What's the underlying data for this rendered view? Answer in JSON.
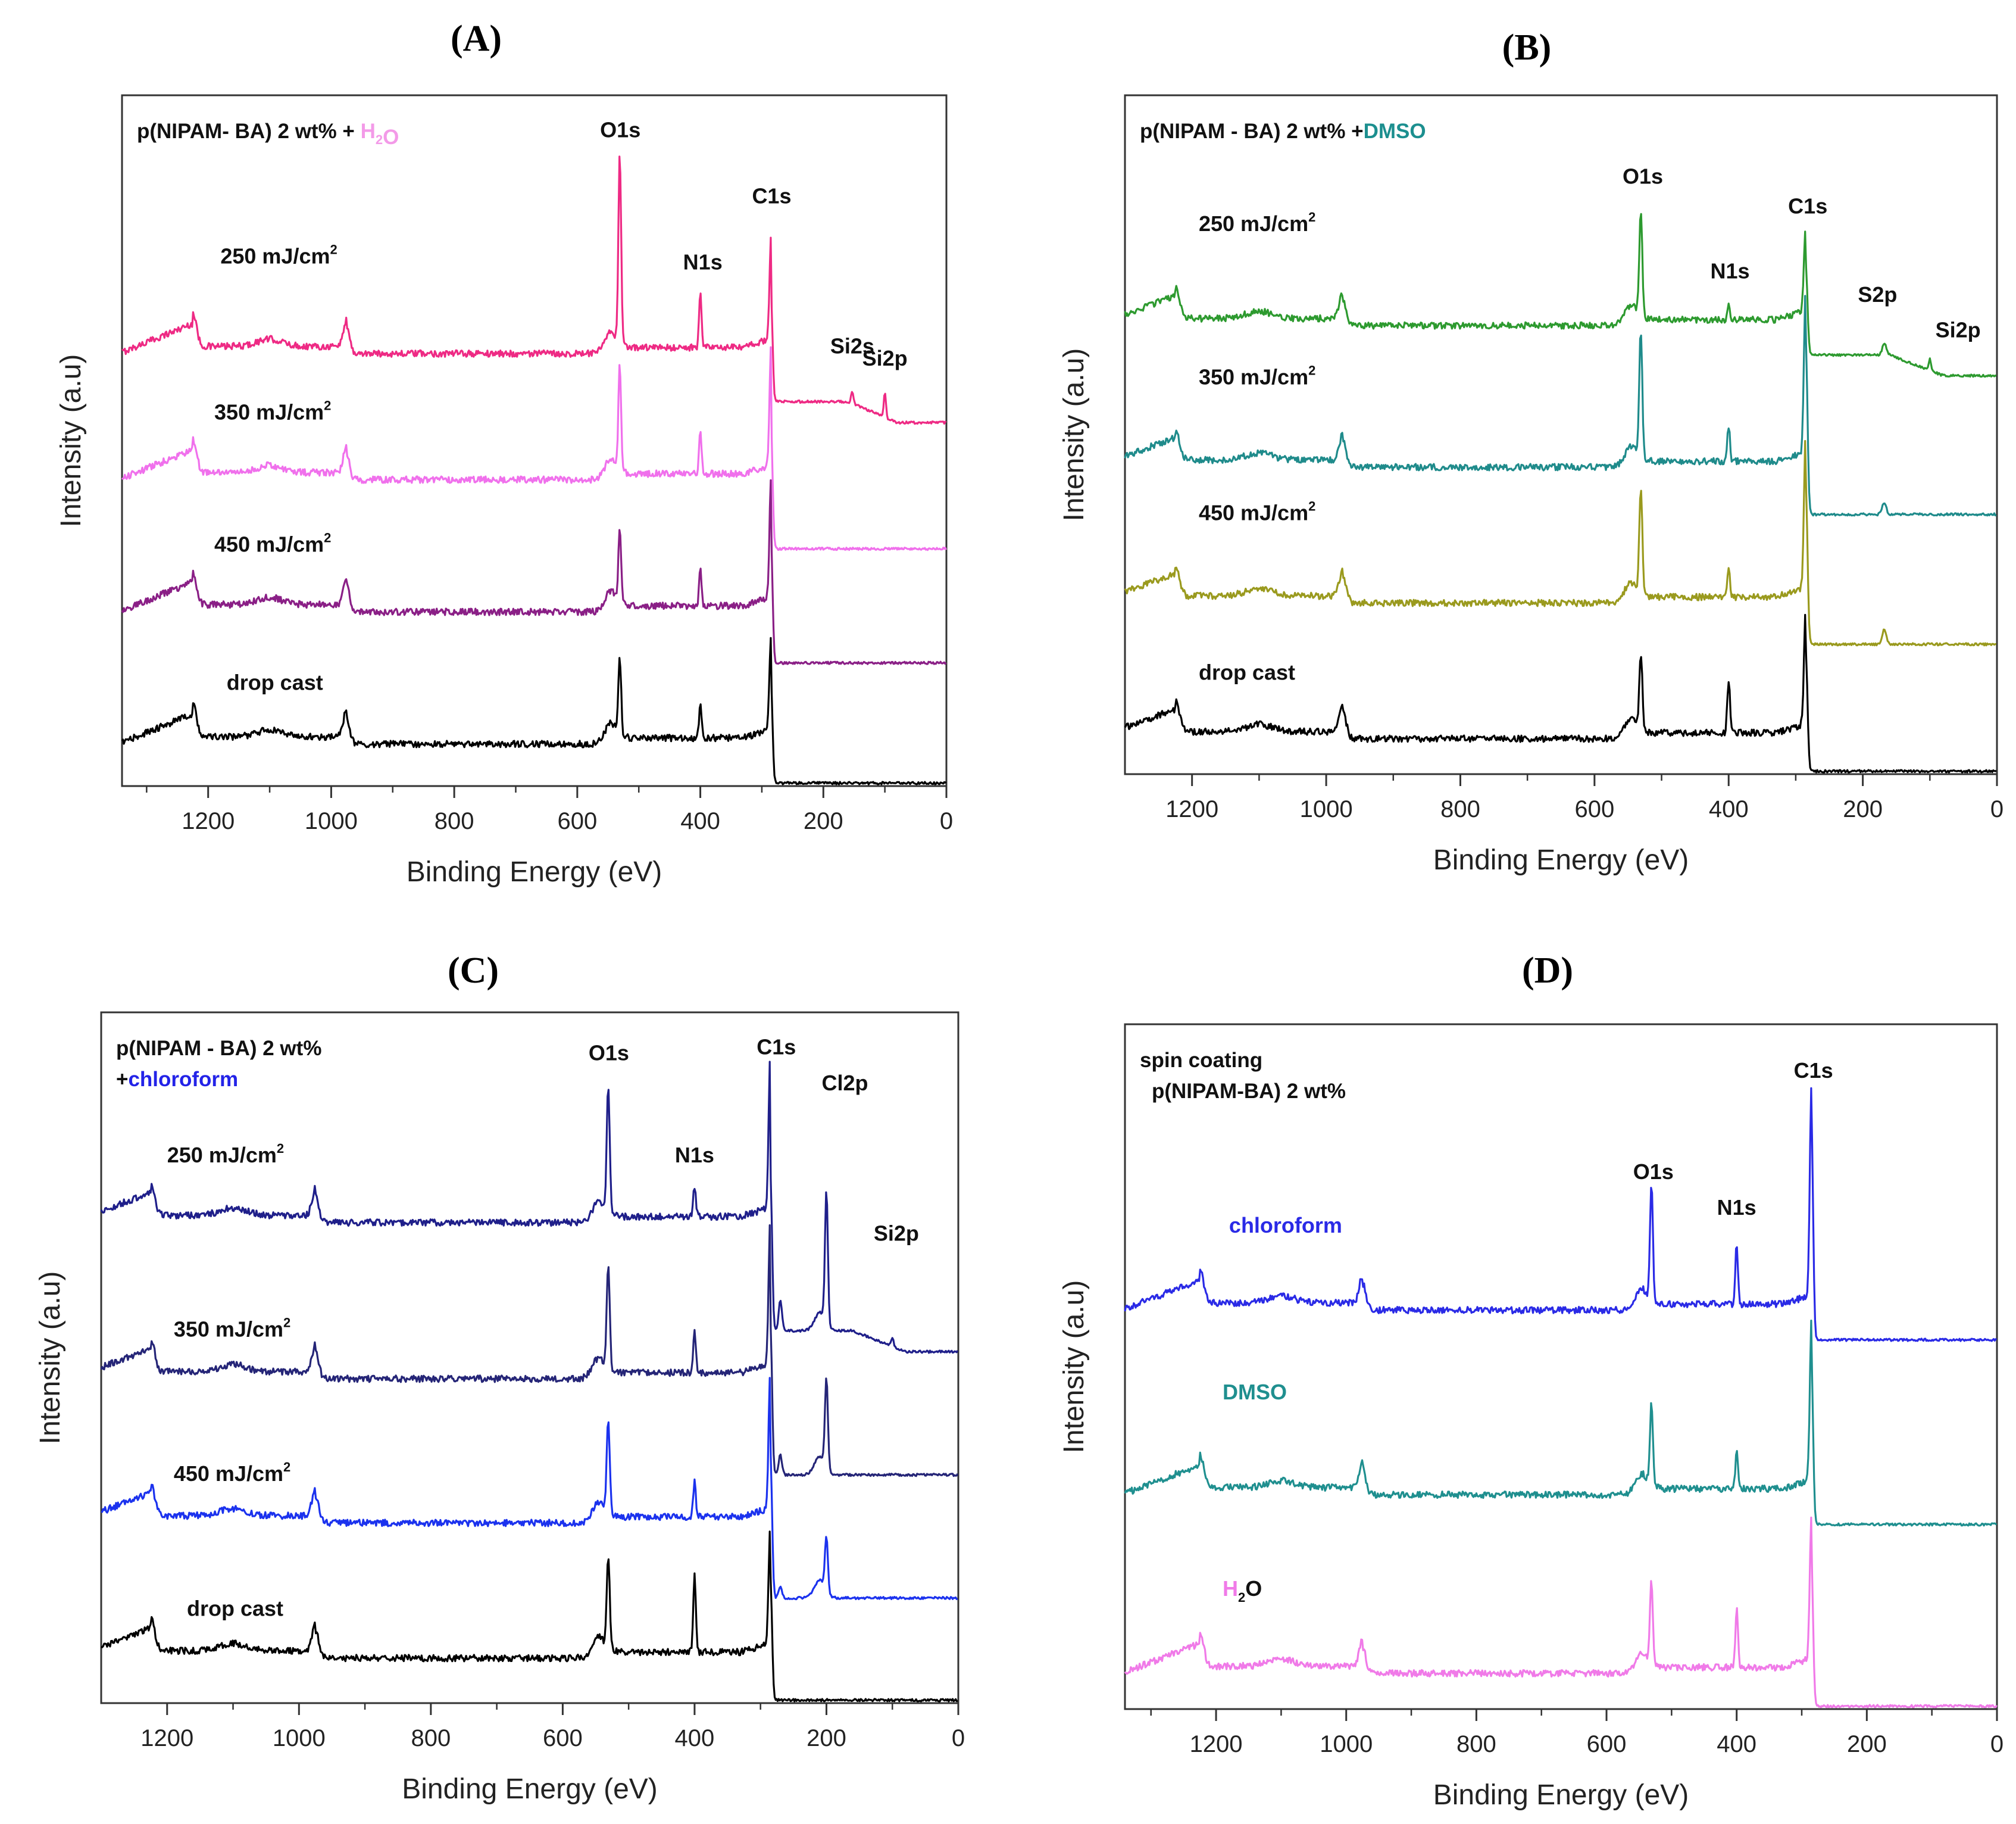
{
  "figure": {
    "panel_letters": [
      "(A)",
      "(B)",
      "(C)",
      "(D)"
    ],
    "common_xlabel": "Binding Energy (eV)",
    "common_ylabel": "Intensity (a.u)"
  },
  "chart_data": [
    {
      "id": "A",
      "type": "line",
      "panel_label": "(A)",
      "title_parts": [
        {
          "text": "p(NIPAM- BA) 2 wt% + ",
          "color": "#111111"
        },
        {
          "text": "H",
          "color": "#f39ae8"
        },
        {
          "text": "2",
          "color": "#f39ae8",
          "sub": true
        },
        {
          "text": "O",
          "color": "#f39ae8"
        }
      ],
      "xlabel": "Binding Energy (eV)",
      "ylabel": "Intensity (a.u)",
      "xlim": [
        1340,
        0
      ],
      "x_ticks": [
        1200,
        1000,
        800,
        600,
        400,
        200,
        0
      ],
      "x_tick_labels": [
        "1200",
        "1000",
        "800",
        "600",
        "400",
        "200",
        "0"
      ],
      "series": [
        {
          "name": "250 mJ/cm2",
          "label": "250 mJ/cm",
          "sup": "2",
          "color": "#ee2a84",
          "label_x": 1180,
          "label_depth": 1.5,
          "baseline": 7.2,
          "tail": 6.4,
          "o1s": 3.2,
          "n1s": 0.9,
          "c1s": 1.7,
          "si2p": 0.4,
          "si2s": 0.2
        },
        {
          "name": "350 mJ/cm2",
          "label": "350 mJ/cm",
          "sup": "2",
          "color": "#f070ec",
          "label_x": 1190,
          "label_depth": 1.0,
          "baseline": 5.1,
          "tail": 3.95,
          "o1s": 1.8,
          "n1s": 0.7,
          "c1s": 2.0
        },
        {
          "name": "450 mJ/cm2",
          "label": "450 mJ/cm",
          "sup": "2",
          "color": "#8a1f86",
          "label_x": 1190,
          "label_depth": 1.0,
          "baseline": 2.9,
          "tail": 2.05,
          "o1s": 1.3,
          "n1s": 0.6,
          "c1s": 2.0
        },
        {
          "name": "drop cast",
          "label": "drop cast",
          "sup": "",
          "color": "#000000",
          "label_x": 1170,
          "label_depth": 0.9,
          "baseline": 0.7,
          "tail": 0.05,
          "o1s": 1.3,
          "n1s": 0.6,
          "c1s": 1.6
        }
      ],
      "peak_annotations": [
        {
          "text": "O1s",
          "x": 530,
          "level": 10.8
        },
        {
          "text": "N1s",
          "x": 396,
          "level": 8.6
        },
        {
          "text": "C1s",
          "x": 284,
          "level": 9.7
        },
        {
          "text": "Si2s",
          "x": 153,
          "level": 7.2
        },
        {
          "text": "Si2p",
          "x": 100,
          "level": 7.0
        }
      ]
    },
    {
      "id": "B",
      "type": "line",
      "panel_label": "(B)",
      "title_parts": [
        {
          "text": "p(NIPAM - BA) 2 wt% +",
          "color": "#111111"
        },
        {
          "text": "DMSO",
          "color": "#1c8f8f"
        }
      ],
      "xlabel": "Binding Energy (eV)",
      "ylabel": "Intensity (a.u)",
      "xlim": [
        1300,
        0
      ],
      "x_ticks": [
        1200,
        1000,
        800,
        600,
        400,
        200,
        0
      ],
      "x_tick_labels": [
        "1200",
        "1000",
        "800",
        "600",
        "400",
        "200",
        "0"
      ],
      "series": [
        {
          "name": "250 mJ/cm2",
          "label": "250 mJ/cm",
          "sup": "2",
          "color": "#2d9a2f",
          "label_x": 1190,
          "label_depth": 1.6,
          "baseline": 7.6,
          "tail": 7.1,
          "o1s": 1.8,
          "n1s": 0.3,
          "c1s": 1.5,
          "s2p": 0.2,
          "si2p": 0.2
        },
        {
          "name": "350 mJ/cm2",
          "label": "350 mJ/cm",
          "sup": "2",
          "color": "#1f8b8b",
          "label_x": 1190,
          "label_depth": 1.4,
          "baseline": 5.2,
          "tail": 4.4,
          "o1s": 2.2,
          "n1s": 0.6,
          "c1s": 2.9,
          "s2p": 0.2
        },
        {
          "name": "450 mJ/cm2",
          "label": "450 mJ/cm",
          "sup": "2",
          "color": "#9a9a1e",
          "label_x": 1190,
          "label_depth": 1.4,
          "baseline": 2.9,
          "tail": 2.2,
          "o1s": 1.8,
          "n1s": 0.5,
          "c1s": 2.7,
          "s2p": 0.25
        },
        {
          "name": "drop cast",
          "label": "drop cast",
          "sup": "",
          "color": "#000000",
          "label_x": 1190,
          "label_depth": 1.0,
          "baseline": 0.6,
          "tail": 0.05,
          "o1s": 1.3,
          "n1s": 0.9,
          "c1s": 2.0
        }
      ],
      "peak_annotations": [
        {
          "text": "O1s",
          "x": 528,
          "level": 10.0
        },
        {
          "text": "N1s",
          "x": 398,
          "level": 8.4
        },
        {
          "text": "C1s",
          "x": 282,
          "level": 9.5
        },
        {
          "text": "S2p",
          "x": 178,
          "level": 8.0
        },
        {
          "text": "Si2p",
          "x": 58,
          "level": 7.4
        }
      ]
    },
    {
      "id": "C",
      "type": "line",
      "panel_label": "(C)",
      "title_parts": [
        {
          "text": "p(NIPAM - BA) 2 wt%",
          "color": "#111111"
        },
        {
          "text": "+",
          "color": "#111111",
          "newline": true
        },
        {
          "text": "chloroform",
          "color": "#2323e8"
        }
      ],
      "xlabel": "Binding Energy (eV)",
      "ylabel": "Intensity (a.u)",
      "xlim": [
        1300,
        0
      ],
      "x_ticks": [
        1200,
        1000,
        800,
        600,
        400,
        200,
        0
      ],
      "x_tick_labels": [
        "1200",
        "1000",
        "800",
        "600",
        "400",
        "200",
        "0"
      ],
      "series": [
        {
          "name": "250 mJ/cm2",
          "label": "250 mJ/cm",
          "sup": "2",
          "color": "#1f1f8a",
          "label_x": 1200,
          "label_depth": 1.0,
          "baseline": 8.0,
          "tail": 6.2,
          "o1s": 2.1,
          "n1s": 0.5,
          "c1s": 2.6,
          "cl2p": 2.2,
          "si2p": 0.15
        },
        {
          "name": "350 mJ/cm2",
          "label": "350 mJ/cm",
          "sup": "2",
          "color": "#252577",
          "label_x": 1190,
          "label_depth": 0.7,
          "baseline": 5.4,
          "tail": 3.8,
          "o1s": 1.8,
          "n1s": 0.7,
          "c1s": 2.5,
          "cl2p": 1.5
        },
        {
          "name": "450 mJ/cm2",
          "label": "450 mJ/cm",
          "sup": "2",
          "color": "#1b32ee",
          "label_x": 1190,
          "label_depth": 0.7,
          "baseline": 3.0,
          "tail": 1.75,
          "o1s": 1.6,
          "n1s": 0.6,
          "c1s": 2.4,
          "cl2p": 0.9
        },
        {
          "name": "drop cast",
          "label": "drop cast",
          "sup": "",
          "color": "#000000",
          "label_x": 1170,
          "label_depth": 0.7,
          "baseline": 0.75,
          "tail": 0.05,
          "o1s": 1.6,
          "n1s": 1.3,
          "c1s": 2.0
        }
      ],
      "peak_annotations": [
        {
          "text": "O1s",
          "x": 530,
          "level": 10.7
        },
        {
          "text": "N1s",
          "x": 400,
          "level": 9.0
        },
        {
          "text": "C1s",
          "x": 276,
          "level": 10.8
        },
        {
          "text": "Cl2p",
          "x": 172,
          "level": 10.2
        },
        {
          "text": "Si2p",
          "x": 94,
          "level": 7.7
        }
      ]
    },
    {
      "id": "D",
      "type": "line",
      "panel_label": "(D)",
      "title_parts": [
        {
          "text": "spin coating",
          "color": "#111111"
        },
        {
          "text": "p(NIPAM-BA) 2 wt%",
          "color": "#111111",
          "newline": true
        }
      ],
      "xlabel": "Binding Energy (eV)",
      "ylabel": "Intensity (a.u)",
      "xlim": [
        1340,
        0
      ],
      "x_ticks": [
        1200,
        1000,
        800,
        600,
        400,
        200,
        0
      ],
      "x_tick_labels": [
        "1200",
        "1000",
        "800",
        "600",
        "400",
        "200",
        "0"
      ],
      "series": [
        {
          "name": "chloroform",
          "label": "chloroform",
          "sup": "",
          "color": "#2a2ae6",
          "label_x": 1180,
          "label_depth": 1.3,
          "text_color": "#2a2ae6",
          "baseline": 6.7,
          "tail": 6.2,
          "o1s": 2.0,
          "n1s": 1.0,
          "c1s": 3.6
        },
        {
          "name": "DMSO",
          "label": "DMSO",
          "sup": "",
          "color": "#1f8f8f",
          "label_x": 1190,
          "label_depth": 1.6,
          "text_color": "#1f8f8f",
          "baseline": 3.6,
          "tail": 3.1,
          "o1s": 1.4,
          "n1s": 0.6,
          "c1s": 2.7
        },
        {
          "name": "H2O",
          "label": "H",
          "sup": "",
          "sub": "2",
          "label_tail": "O",
          "color": "#f07ae8",
          "label_x": 1190,
          "label_depth": 1.3,
          "text_color": "#f07ae8",
          "baseline": 0.6,
          "tail": 0.05,
          "o1s": 1.4,
          "n1s": 1.0,
          "c1s": 2.4
        }
      ],
      "peak_annotations": [
        {
          "text": "O1s",
          "x": 528,
          "level": 8.9
        },
        {
          "text": "N1s",
          "x": 400,
          "level": 8.3
        },
        {
          "text": "C1s",
          "x": 282,
          "level": 10.6
        }
      ]
    }
  ]
}
